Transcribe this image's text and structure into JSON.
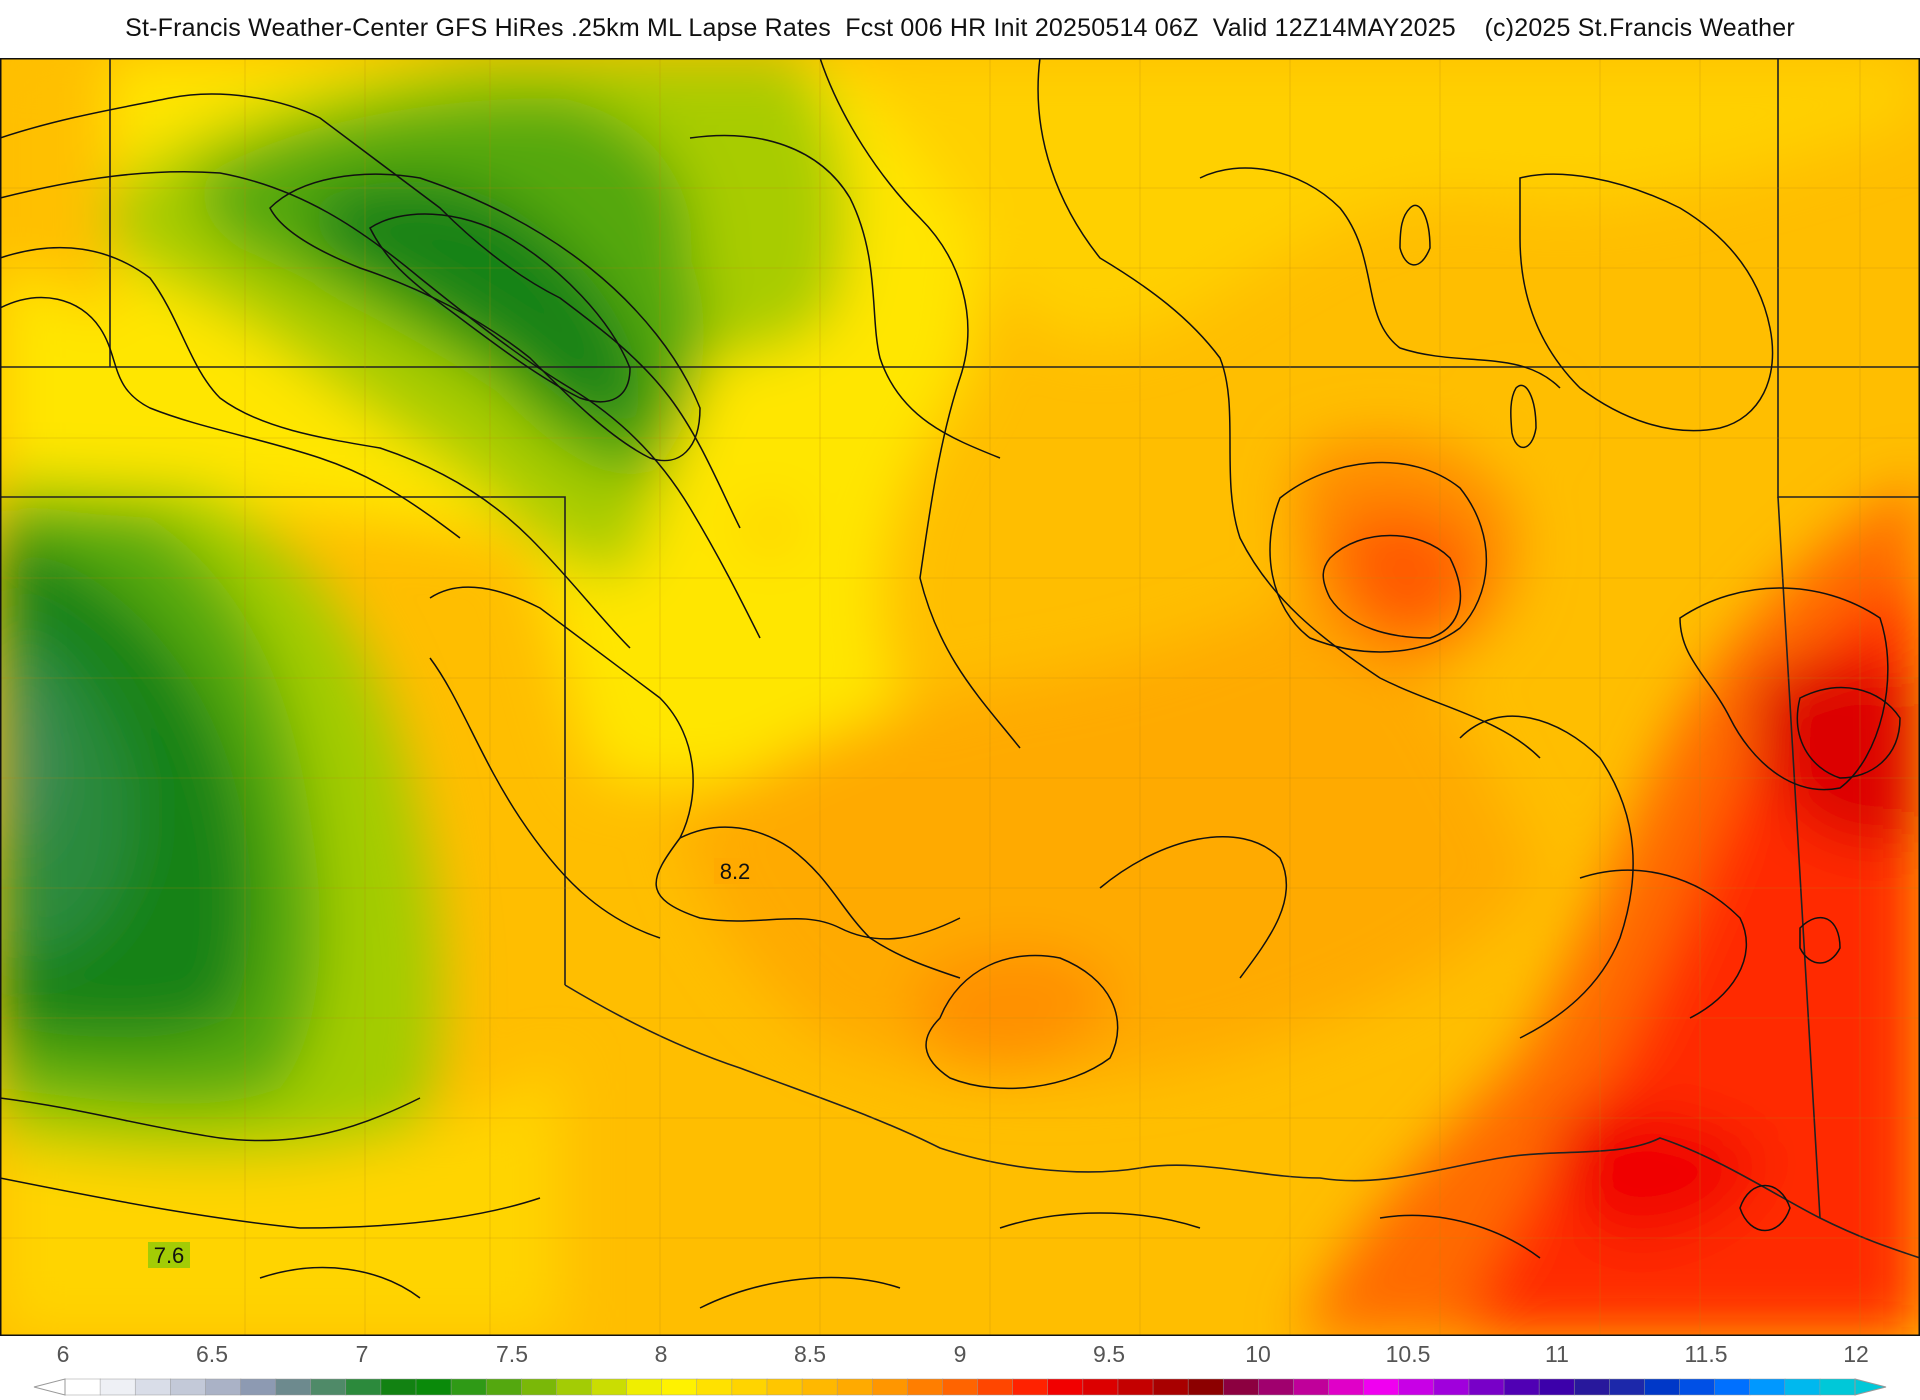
{
  "header": {
    "title": "St-Francis Weather-Center GFS HiRes .25km ML Lapse Rates  Fcst 006 HR Init 20250514 06Z  Valid 12Z14MAY2025    (c)2025 St.Francis Weather"
  },
  "map": {
    "contour_labels": [
      {
        "id": "label-8-2",
        "text": "8.2"
      },
      {
        "id": "label-7-6",
        "text": "7.6"
      }
    ]
  },
  "colorbar": {
    "ticks": [
      "6",
      "6.5",
      "7",
      "7.5",
      "8",
      "8.5",
      "9",
      "9.5",
      "10",
      "10.5",
      "11",
      "11.5",
      "12"
    ],
    "colors": [
      "#ffffff",
      "#eef0f5",
      "#d9dde8",
      "#c3c9d8",
      "#aab2c6",
      "#8d9ab2",
      "#6d8a8e",
      "#4f8a68",
      "#2c8a3c",
      "#128212",
      "#0a8a0a",
      "#2f9a16",
      "#54a80f",
      "#7ab808",
      "#a3cc05",
      "#cadd02",
      "#f0ee00",
      "#fff200",
      "#ffe100",
      "#ffd400",
      "#ffc600",
      "#ffb800",
      "#ffaa00",
      "#ff9600",
      "#ff7e00",
      "#ff6400",
      "#ff4600",
      "#ff2200",
      "#f20000",
      "#dc0000",
      "#c40000",
      "#a80000",
      "#8c0000",
      "#8c0040",
      "#a0006e",
      "#c0009a",
      "#e000c8",
      "#f000f0",
      "#c800e6",
      "#a000dc",
      "#7800c8",
      "#5000b4",
      "#3c00aa",
      "#28189c",
      "#1c28aa",
      "#0038c8",
      "#0050e6",
      "#0070ff",
      "#0098ff",
      "#00b8ee",
      "#00c8d8"
    ]
  }
}
